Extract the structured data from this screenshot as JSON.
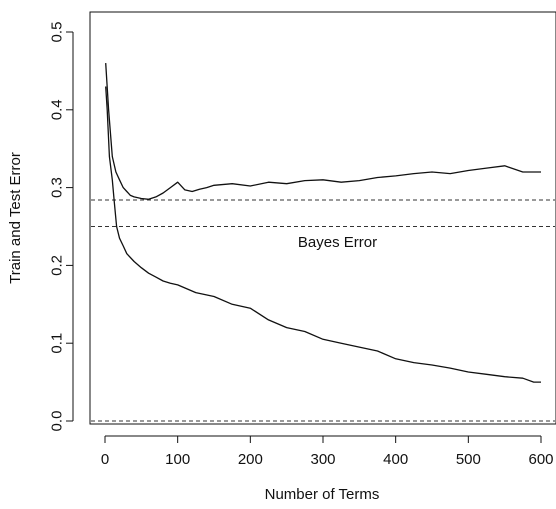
{
  "chart_data": {
    "type": "line",
    "title": "",
    "xlabel": "Number of Terms",
    "ylabel": "Train and Test Error",
    "xlim": [
      0,
      600
    ],
    "ylim": [
      0.0,
      0.5
    ],
    "x_ticks": [
      0,
      100,
      200,
      300,
      400,
      500,
      600
    ],
    "y_ticks": [
      0.0,
      0.1,
      0.2,
      0.3,
      0.4,
      0.5
    ],
    "x_tick_labels": [
      "0",
      "100",
      "200",
      "300",
      "400",
      "500",
      "600"
    ],
    "y_tick_labels": [
      "0.0",
      "0.1",
      "0.2",
      "0.3",
      "0.4",
      "0.5"
    ],
    "grid": false,
    "series": [
      {
        "style": "solid",
        "color": "#111111",
        "x": [
          1,
          5,
          10,
          15,
          20,
          25,
          30,
          35,
          40,
          50,
          60,
          70,
          80,
          90,
          100,
          110,
          120,
          130,
          140,
          150,
          175,
          200,
          225,
          250,
          275,
          300,
          325,
          350,
          375,
          400,
          425,
          450,
          475,
          500,
          525,
          550,
          575,
          600
        ],
        "y": [
          0.46,
          0.4,
          0.34,
          0.32,
          0.31,
          0.3,
          0.295,
          0.29,
          0.288,
          0.286,
          0.285,
          0.288,
          0.293,
          0.3,
          0.307,
          0.297,
          0.295,
          0.298,
          0.3,
          0.303,
          0.305,
          0.302,
          0.307,
          0.305,
          0.309,
          0.31,
          0.307,
          0.309,
          0.313,
          0.315,
          0.318,
          0.32,
          0.318,
          0.322,
          0.325,
          0.328,
          0.32,
          0.32
        ]
      },
      {
        "style": "solid",
        "color": "#111111",
        "x": [
          1,
          3,
          6,
          10,
          13,
          16,
          20,
          25,
          30,
          40,
          50,
          60,
          70,
          80,
          90,
          100,
          125,
          150,
          175,
          200,
          225,
          250,
          275,
          300,
          325,
          350,
          375,
          400,
          425,
          450,
          475,
          500,
          525,
          550,
          575,
          590,
          600
        ],
        "y": [
          0.43,
          0.4,
          0.34,
          0.31,
          0.28,
          0.25,
          0.235,
          0.225,
          0.215,
          0.205,
          0.197,
          0.19,
          0.185,
          0.18,
          0.177,
          0.175,
          0.165,
          0.16,
          0.15,
          0.145,
          0.13,
          0.12,
          0.115,
          0.105,
          0.1,
          0.095,
          0.09,
          0.08,
          0.075,
          0.072,
          0.068,
          0.063,
          0.06,
          0.057,
          0.055,
          0.05,
          0.05
        ]
      }
    ],
    "reference_lines": [
      {
        "y": 0.284,
        "style": "dashed",
        "label": ""
      },
      {
        "y": 0.25,
        "style": "dashed",
        "label": "Bayes Error"
      },
      {
        "y": 0.0,
        "style": "dashed",
        "label": ""
      }
    ],
    "annotations": [
      {
        "text": "Bayes Error",
        "x": 320,
        "y": 0.23
      }
    ]
  }
}
